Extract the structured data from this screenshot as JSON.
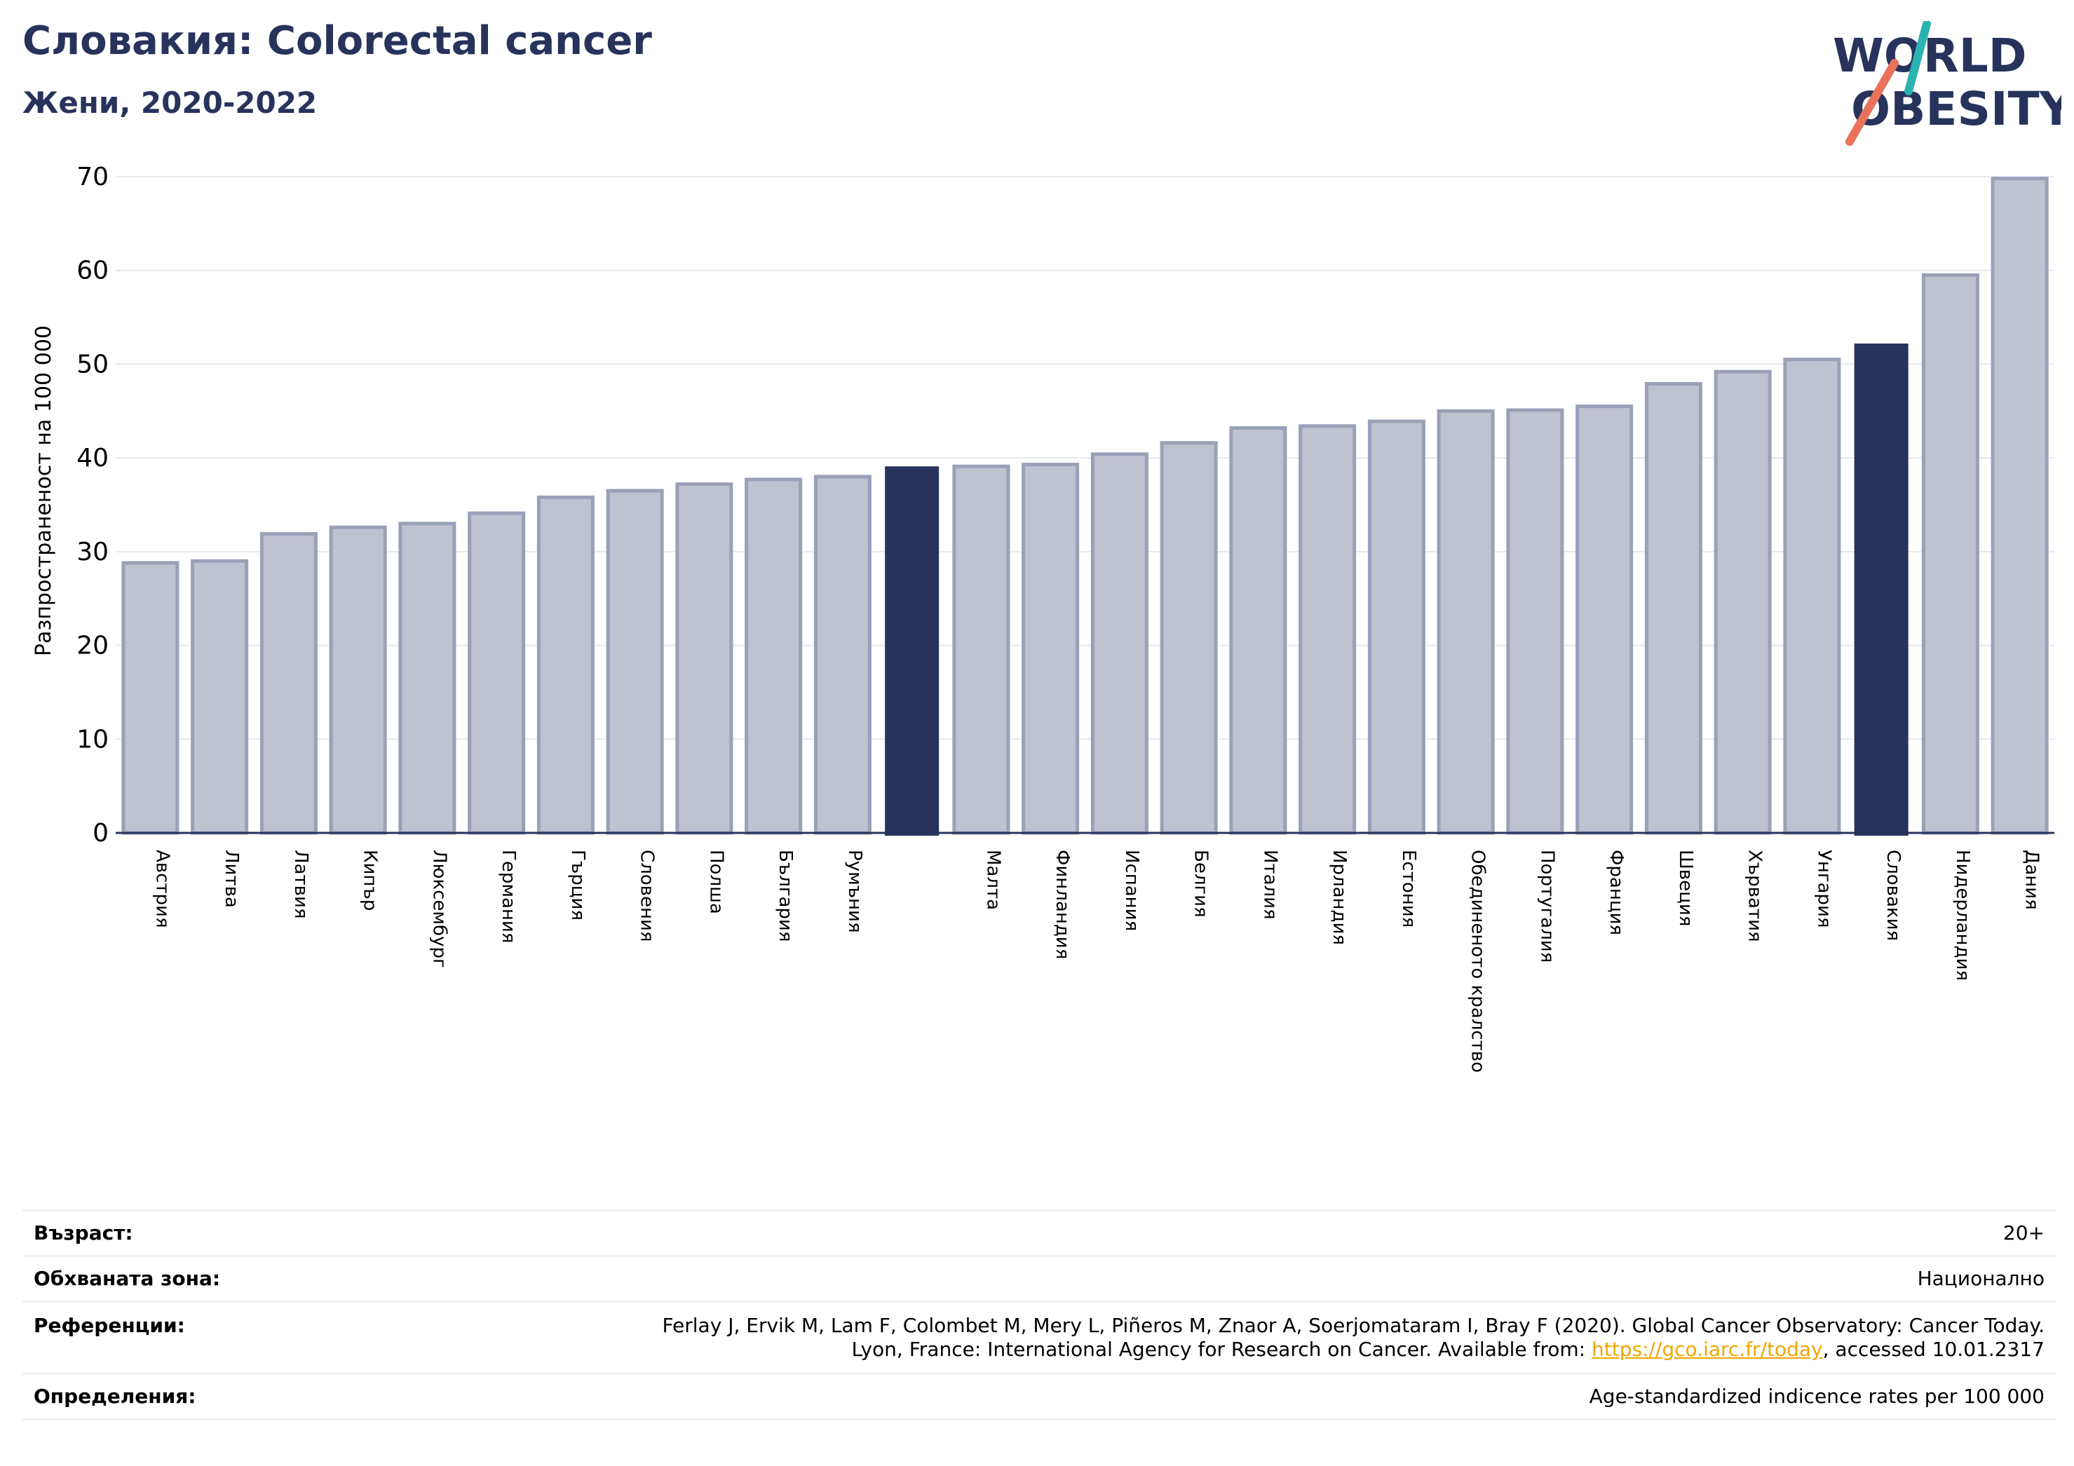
{
  "header": {
    "title": "Словакия: Colorectal cancer",
    "subtitle": "Жени, 2020-2022"
  },
  "logo": {
    "text_line1": "WORLD",
    "text_line2": "OBESITY",
    "colors": {
      "text": "#28335c",
      "teal": "#2bb3b1",
      "coral": "#e8735a"
    }
  },
  "chart_data": {
    "type": "bar",
    "title": "",
    "xlabel": "",
    "ylabel": "Разпространеност  на 100 000",
    "ylim": [
      0,
      70
    ],
    "yticks": [
      0,
      10,
      20,
      30,
      40,
      50,
      60,
      70
    ],
    "grid": true,
    "categories": [
      "Австрия",
      "Литва",
      "Латвия",
      "Кипър",
      "Люксембург",
      "Германия",
      "Гърция",
      "Словения",
      "Полша",
      "България",
      "Румъния",
      "",
      "Малта",
      "Финландия",
      "Испания",
      "Белгия",
      "Италия",
      "Ирландия",
      "Естония",
      "Обединеното кралство",
      "Португалия",
      "Франция",
      "Швеция",
      "Хърватия",
      "Унгария",
      "Словакия",
      "Нидерландия",
      "Дания"
    ],
    "values": [
      28.8,
      29.0,
      31.9,
      32.6,
      33.0,
      34.1,
      35.8,
      36.5,
      37.2,
      37.7,
      38.0,
      39.1,
      39.1,
      39.3,
      40.4,
      41.6,
      43.2,
      43.4,
      43.9,
      45.0,
      45.1,
      45.5,
      47.9,
      49.2,
      50.5,
      52.2,
      59.5,
      69.8
    ],
    "highlight_indices": [
      11,
      25
    ],
    "colors": {
      "bar": "#bfc2cf",
      "bar_edge": "#9aa0b8",
      "highlight": "#28335c",
      "grid": "#e6e8ef",
      "axis": "#28335c"
    }
  },
  "info": {
    "rows": [
      {
        "key": "Възраст:",
        "value": "20+"
      },
      {
        "key": "Обхваната зона:",
        "value": "Национално"
      },
      {
        "key": "Референции:",
        "value_line1": "Ferlay J, Ervik M, Lam F, Colombet M, Mery L, Piñeros M, Znaor A, Soerjomataram I, Bray F (2020). Global Cancer Observatory: Cancer Today.",
        "value_line2_pre": "Lyon, France: International Agency for Research on Cancer. Available from: ",
        "value_link": "https://gco.iarc.fr/today",
        "value_line2_post": ", accessed 10.01.2317"
      },
      {
        "key": "Определения:",
        "value": "Age-standardized indicence rates per 100 000"
      }
    ]
  }
}
